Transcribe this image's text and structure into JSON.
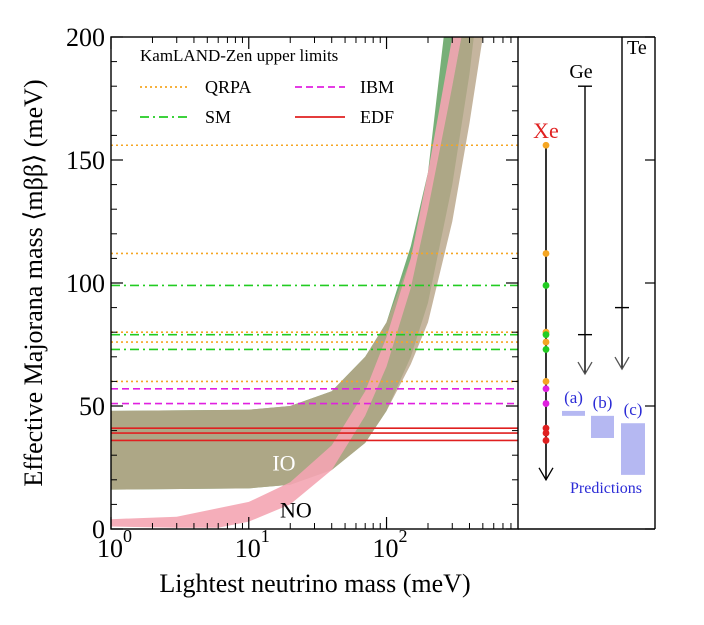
{
  "chart_data": {
    "type": "line",
    "xlabel": "Lightest neutrino mass  (meV)",
    "ylabel": "Effective Majorana mass ⟨mββ⟩  (meV)",
    "xscale": "log",
    "xlim": [
      1,
      900
    ],
    "ylim": [
      0,
      200
    ],
    "xticks": [
      {
        "value": 1,
        "base": "10",
        "exp": "0"
      },
      {
        "value": 10,
        "base": "10",
        "exp": "1"
      },
      {
        "value": 100,
        "base": "10",
        "exp": "2"
      }
    ],
    "yticks": [
      "0",
      "50",
      "100",
      "150",
      "200"
    ],
    "legend": {
      "title": "KamLAND-Zen upper limits",
      "placement": "top-left",
      "entries": [
        {
          "name": "QRPA",
          "color": "#f5a623",
          "style": "dotted"
        },
        {
          "name": "SM",
          "color": "#22cc22",
          "style": "dashdot"
        },
        {
          "name": "IBM",
          "color": "#e020e0",
          "style": "dashed"
        },
        {
          "name": "EDF",
          "color": "#e02020",
          "style": "solid"
        }
      ]
    },
    "limits": [
      {
        "model": "QRPA",
        "value": 156,
        "color": "#f5a623",
        "style": "dotted"
      },
      {
        "model": "QRPA",
        "value": 112,
        "color": "#f5a623",
        "style": "dotted"
      },
      {
        "model": "SM",
        "value": 99,
        "color": "#22cc22",
        "style": "dashdot"
      },
      {
        "model": "QRPA",
        "value": 80,
        "color": "#f5a623",
        "style": "dotted"
      },
      {
        "model": "SM",
        "value": 79,
        "color": "#22cc22",
        "style": "dashdot"
      },
      {
        "model": "QRPA",
        "value": 76,
        "color": "#f5a623",
        "style": "dotted"
      },
      {
        "model": "SM",
        "value": 73,
        "color": "#22cc22",
        "style": "dashdot"
      },
      {
        "model": "QRPA",
        "value": 60,
        "color": "#f5a623",
        "style": "dotted"
      },
      {
        "model": "IBM",
        "value": 57,
        "color": "#e020e0",
        "style": "dashed"
      },
      {
        "model": "IBM",
        "value": 51,
        "color": "#e020e0",
        "style": "dashed"
      },
      {
        "model": "EDF",
        "value": 41,
        "color": "#e02020",
        "style": "solid"
      },
      {
        "model": "EDF",
        "value": 39,
        "color": "#e02020",
        "style": "solid"
      },
      {
        "model": "EDF",
        "value": 36,
        "color": "#e02020",
        "style": "solid"
      }
    ],
    "bands": [
      {
        "name": "IO",
        "color": "#5a9e5a",
        "upper": [
          [
            1,
            48
          ],
          [
            10,
            48.5
          ],
          [
            20,
            50
          ],
          [
            40,
            56
          ],
          [
            70,
            70
          ],
          [
            100,
            84
          ],
          [
            150,
            115
          ],
          [
            200,
            145
          ],
          [
            260,
            200
          ]
        ],
        "lower": [
          [
            1,
            16
          ],
          [
            10,
            16.5
          ],
          [
            20,
            18
          ],
          [
            40,
            24
          ],
          [
            70,
            35
          ],
          [
            100,
            48
          ],
          [
            150,
            70
          ],
          [
            200,
            92
          ],
          [
            300,
            140
          ],
          [
            400,
            185
          ],
          [
            430,
            200
          ]
        ]
      },
      {
        "name": "IO-alt",
        "color": "#b8a589",
        "upper": [
          [
            1,
            48
          ],
          [
            10,
            48.5
          ],
          [
            20,
            50
          ],
          [
            40,
            56
          ],
          [
            70,
            70
          ],
          [
            100,
            84
          ],
          [
            150,
            110
          ],
          [
            200,
            135
          ],
          [
            300,
            180
          ],
          [
            350,
            200
          ],
          [
            500,
            200
          ]
        ],
        "lower": [
          [
            1,
            16
          ],
          [
            10,
            16.5
          ],
          [
            20,
            18
          ],
          [
            40,
            24
          ],
          [
            70,
            35
          ],
          [
            100,
            48
          ],
          [
            150,
            67
          ],
          [
            200,
            84
          ],
          [
            300,
            125
          ],
          [
            400,
            165
          ],
          [
            500,
            200
          ]
        ]
      },
      {
        "name": "NO",
        "color": "#f4a5b3",
        "upper": [
          [
            1,
            4
          ],
          [
            3,
            5
          ],
          [
            10,
            11
          ],
          [
            20,
            19
          ],
          [
            40,
            34
          ],
          [
            70,
            56
          ],
          [
            100,
            78
          ],
          [
            150,
            110
          ],
          [
            200,
            145
          ],
          [
            300,
            200
          ],
          [
            500,
            200
          ]
        ],
        "lower": [
          [
            1,
            1
          ],
          [
            3,
            0.5
          ],
          [
            6,
            0.5
          ],
          [
            10,
            3
          ],
          [
            20,
            10
          ],
          [
            40,
            24
          ],
          [
            70,
            46
          ],
          [
            100,
            66
          ],
          [
            150,
            98
          ],
          [
            200,
            130
          ],
          [
            300,
            180
          ],
          [
            350,
            200
          ],
          [
            500,
            200
          ]
        ]
      }
    ],
    "band_labels": [
      {
        "text": "IO",
        "x": 18,
        "y": 27
      },
      {
        "text": "NO",
        "x": 22,
        "y": 8
      }
    ],
    "side_panel": {
      "isotopes": [
        {
          "label": "Xe",
          "color": "#e02020",
          "top": 156,
          "bottom": 20
        },
        {
          "label": "Ge",
          "color": "#000000",
          "top": 180,
          "bottom": 63
        },
        {
          "label": "Te",
          "color": "#000000",
          "top": 200,
          "bottom": 65
        }
      ],
      "xe_points": [
        {
          "value": 156,
          "color": "#f5a623"
        },
        {
          "value": 112,
          "color": "#f5a623"
        },
        {
          "value": 99,
          "color": "#22cc22"
        },
        {
          "value": 80,
          "color": "#f5a623"
        },
        {
          "value": 79,
          "color": "#22cc22"
        },
        {
          "value": 76,
          "color": "#f5a623"
        },
        {
          "value": 73,
          "color": "#22cc22"
        },
        {
          "value": 60,
          "color": "#f5a623"
        },
        {
          "value": 57,
          "color": "#e020e0"
        },
        {
          "value": 51,
          "color": "#e020e0"
        },
        {
          "value": 41,
          "color": "#e02020"
        },
        {
          "value": 39,
          "color": "#e02020"
        },
        {
          "value": 36,
          "color": "#e02020"
        }
      ],
      "ge_tick": 79,
      "te_tick": 90,
      "predictions_label": "Predictions",
      "predictions": [
        {
          "label": "(a)",
          "low": 46,
          "high": 48
        },
        {
          "label": "(b)",
          "low": 37,
          "high": 46
        },
        {
          "label": "(c)",
          "low": 22,
          "high": 43
        }
      ]
    }
  }
}
